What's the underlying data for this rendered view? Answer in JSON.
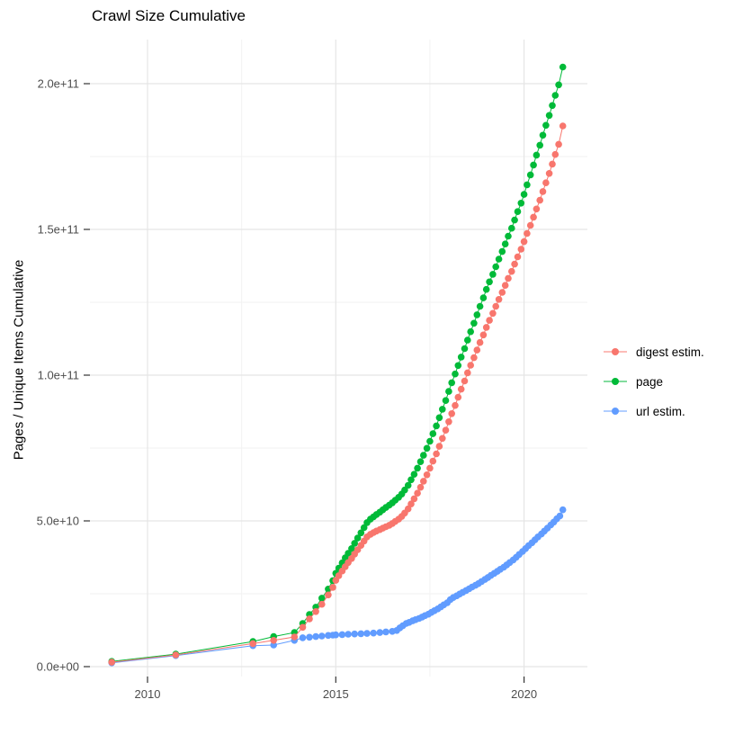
{
  "title": "Crawl Size Cumulative",
  "y_axis": {
    "label": "Pages / Unique Items Cumulative",
    "ticks": [
      "0.0e+00",
      "5.0e+10",
      "1.0e+11",
      "1.5e+11",
      "2.0e+11"
    ],
    "tick_values_billions": [
      0,
      50,
      100,
      150,
      200
    ],
    "minor_values_billions": [
      25,
      75,
      125,
      175
    ]
  },
  "x_axis": {
    "ticks": [
      "2010",
      "2015",
      "2020"
    ],
    "tick_values": [
      2010,
      2015,
      2020
    ],
    "minor_values": [
      2012.5,
      2017.5
    ]
  },
  "legend": {
    "items": [
      {
        "label": "digest estim.",
        "color": "#F8766D"
      },
      {
        "label": "page",
        "color": "#00BA38"
      },
      {
        "label": "url estim.",
        "color": "#619CFF"
      }
    ]
  },
  "colors": {
    "grid_major": "#E5E5E5",
    "grid_minor": "#F2F2F2",
    "tick_mark": "#333333",
    "tick_text": "#4D4D4D"
  },
  "chart_data": {
    "type": "line",
    "style": "points-and-line",
    "title": "Crawl Size Cumulative",
    "xlabel": "",
    "ylabel": "Pages / Unique Items Cumulative",
    "x_unit": "year",
    "y_unit": "pages (billions, 1e9)",
    "xlim": [
      2008.5,
      2021.7
    ],
    "ylim_billions": [
      0,
      218
    ],
    "grid": true,
    "legend_position": "right",
    "series": [
      {
        "name": "digest estim.",
        "color": "#F8766D",
        "points": [
          [
            2009.05,
            1.5
          ],
          [
            2010.75,
            4.0
          ],
          [
            2012.8,
            7.9
          ],
          [
            2013.35,
            9.0
          ],
          [
            2013.9,
            10.2
          ],
          [
            2014.12,
            13.5
          ],
          [
            2014.3,
            16.4
          ],
          [
            2014.47,
            18.9
          ],
          [
            2014.63,
            21.4
          ],
          [
            2014.8,
            24.6
          ],
          [
            2014.92,
            27.2
          ],
          [
            2015.0,
            29.6
          ],
          [
            2015.08,
            31.2
          ],
          [
            2015.17,
            32.8
          ],
          [
            2015.25,
            34.3
          ],
          [
            2015.33,
            35.7
          ],
          [
            2015.42,
            37.1
          ],
          [
            2015.5,
            38.6
          ],
          [
            2015.58,
            40.1
          ],
          [
            2015.67,
            41.6
          ],
          [
            2015.75,
            43.1
          ],
          [
            2015.83,
            44.5
          ],
          [
            2015.92,
            45.4
          ],
          [
            2016.0,
            46.0
          ],
          [
            2016.08,
            46.5
          ],
          [
            2016.17,
            47.0
          ],
          [
            2016.25,
            47.5
          ],
          [
            2016.33,
            48.0
          ],
          [
            2016.42,
            48.5
          ],
          [
            2016.5,
            49.1
          ],
          [
            2016.58,
            49.8
          ],
          [
            2016.67,
            50.6
          ],
          [
            2016.75,
            51.5
          ],
          [
            2016.83,
            52.7
          ],
          [
            2016.92,
            54.1
          ],
          [
            2017.0,
            55.8
          ],
          [
            2017.08,
            57.6
          ],
          [
            2017.17,
            59.5
          ],
          [
            2017.25,
            61.5
          ],
          [
            2017.33,
            63.6
          ],
          [
            2017.42,
            65.8
          ],
          [
            2017.5,
            68.1
          ],
          [
            2017.58,
            70.5
          ],
          [
            2017.67,
            73.0
          ],
          [
            2017.75,
            75.6
          ],
          [
            2017.83,
            78.3
          ],
          [
            2017.92,
            81.1
          ],
          [
            2018.0,
            84.0
          ],
          [
            2018.08,
            86.8
          ],
          [
            2018.17,
            89.6
          ],
          [
            2018.25,
            92.4
          ],
          [
            2018.33,
            95.2
          ],
          [
            2018.42,
            98.0
          ],
          [
            2018.5,
            100.8
          ],
          [
            2018.58,
            103.4
          ],
          [
            2018.67,
            106.0
          ],
          [
            2018.75,
            108.6
          ],
          [
            2018.83,
            111.2
          ],
          [
            2018.92,
            113.8
          ],
          [
            2019.0,
            116.4
          ],
          [
            2019.08,
            118.8
          ],
          [
            2019.17,
            121.2
          ],
          [
            2019.25,
            123.6
          ],
          [
            2019.33,
            126.0
          ],
          [
            2019.42,
            128.4
          ],
          [
            2019.5,
            130.8
          ],
          [
            2019.58,
            133.2
          ],
          [
            2019.67,
            135.6
          ],
          [
            2019.75,
            138.1
          ],
          [
            2019.83,
            140.6
          ],
          [
            2019.92,
            143.2
          ],
          [
            2020.0,
            145.8
          ],
          [
            2020.08,
            148.6
          ],
          [
            2020.17,
            151.4
          ],
          [
            2020.25,
            154.2
          ],
          [
            2020.33,
            157.0
          ],
          [
            2020.42,
            160.0
          ],
          [
            2020.5,
            163.0
          ],
          [
            2020.58,
            166.0
          ],
          [
            2020.67,
            169.2
          ],
          [
            2020.75,
            172.4
          ],
          [
            2020.83,
            175.7
          ],
          [
            2020.92,
            179.2
          ],
          [
            2021.03,
            185.5
          ]
        ]
      },
      {
        "name": "page",
        "color": "#00BA38",
        "points": [
          [
            2009.05,
            1.8
          ],
          [
            2010.75,
            4.3
          ],
          [
            2012.8,
            8.6
          ],
          [
            2013.35,
            10.3
          ],
          [
            2013.9,
            11.7
          ],
          [
            2014.12,
            14.8
          ],
          [
            2014.3,
            17.9
          ],
          [
            2014.47,
            20.4
          ],
          [
            2014.63,
            23.5
          ],
          [
            2014.8,
            26.6
          ],
          [
            2014.92,
            29.5
          ],
          [
            2015.0,
            32.0
          ],
          [
            2015.08,
            33.8
          ],
          [
            2015.17,
            35.6
          ],
          [
            2015.25,
            37.3
          ],
          [
            2015.33,
            38.9
          ],
          [
            2015.42,
            40.5
          ],
          [
            2015.5,
            42.3
          ],
          [
            2015.58,
            44.1
          ],
          [
            2015.67,
            45.9
          ],
          [
            2015.75,
            47.7
          ],
          [
            2015.83,
            49.4
          ],
          [
            2015.92,
            50.6
          ],
          [
            2016.0,
            51.4
          ],
          [
            2016.08,
            52.2
          ],
          [
            2016.17,
            53.0
          ],
          [
            2016.25,
            53.8
          ],
          [
            2016.33,
            54.6
          ],
          [
            2016.42,
            55.4
          ],
          [
            2016.5,
            56.2
          ],
          [
            2016.58,
            57.1
          ],
          [
            2016.67,
            58.1
          ],
          [
            2016.75,
            59.2
          ],
          [
            2016.83,
            60.6
          ],
          [
            2016.92,
            62.2
          ],
          [
            2017.0,
            64.1
          ],
          [
            2017.08,
            66.0
          ],
          [
            2017.17,
            68.1
          ],
          [
            2017.25,
            70.3
          ],
          [
            2017.33,
            72.5
          ],
          [
            2017.42,
            74.9
          ],
          [
            2017.5,
            77.3
          ],
          [
            2017.58,
            79.9
          ],
          [
            2017.67,
            82.6
          ],
          [
            2017.75,
            85.4
          ],
          [
            2017.83,
            88.3
          ],
          [
            2017.92,
            91.3
          ],
          [
            2018.0,
            94.4
          ],
          [
            2018.08,
            97.4
          ],
          [
            2018.17,
            100.4
          ],
          [
            2018.25,
            103.3
          ],
          [
            2018.33,
            106.2
          ],
          [
            2018.42,
            109.1
          ],
          [
            2018.5,
            112.0
          ],
          [
            2018.58,
            114.9
          ],
          [
            2018.67,
            117.8
          ],
          [
            2018.75,
            120.7
          ],
          [
            2018.83,
            123.6
          ],
          [
            2018.92,
            126.5
          ],
          [
            2019.0,
            129.4
          ],
          [
            2019.08,
            132.0
          ],
          [
            2019.17,
            134.6
          ],
          [
            2019.25,
            137.2
          ],
          [
            2019.33,
            139.8
          ],
          [
            2019.42,
            142.4
          ],
          [
            2019.5,
            145.0
          ],
          [
            2019.58,
            147.7
          ],
          [
            2019.67,
            150.4
          ],
          [
            2019.75,
            153.2
          ],
          [
            2019.83,
            156.1
          ],
          [
            2019.92,
            159.0
          ],
          [
            2020.0,
            162.0
          ],
          [
            2020.08,
            165.3
          ],
          [
            2020.17,
            168.7
          ],
          [
            2020.25,
            172.1
          ],
          [
            2020.33,
            175.5
          ],
          [
            2020.42,
            178.9
          ],
          [
            2020.5,
            182.3
          ],
          [
            2020.58,
            185.7
          ],
          [
            2020.67,
            189.1
          ],
          [
            2020.75,
            192.5
          ],
          [
            2020.83,
            196.0
          ],
          [
            2020.92,
            199.6
          ],
          [
            2021.03,
            205.7
          ]
        ]
      },
      {
        "name": "url estim.",
        "color": "#619CFF",
        "points": [
          [
            2009.05,
            1.3
          ],
          [
            2010.75,
            3.8
          ],
          [
            2012.8,
            7.2
          ],
          [
            2013.35,
            7.4
          ],
          [
            2013.9,
            9.0
          ],
          [
            2014.12,
            9.9
          ],
          [
            2014.3,
            10.1
          ],
          [
            2014.47,
            10.3
          ],
          [
            2014.63,
            10.5
          ],
          [
            2014.8,
            10.7
          ],
          [
            2014.92,
            10.8
          ],
          [
            2015.0,
            10.9
          ],
          [
            2015.17,
            11.0
          ],
          [
            2015.33,
            11.1
          ],
          [
            2015.5,
            11.2
          ],
          [
            2015.67,
            11.3
          ],
          [
            2015.83,
            11.4
          ],
          [
            2016.0,
            11.5
          ],
          [
            2016.17,
            11.7
          ],
          [
            2016.33,
            11.9
          ],
          [
            2016.5,
            12.1
          ],
          [
            2016.62,
            12.4
          ],
          [
            2016.7,
            13.3
          ],
          [
            2016.78,
            14.0
          ],
          [
            2016.87,
            14.8
          ],
          [
            2016.95,
            15.2
          ],
          [
            2017.04,
            15.7
          ],
          [
            2017.12,
            16.1
          ],
          [
            2017.21,
            16.5
          ],
          [
            2017.29,
            17.0
          ],
          [
            2017.37,
            17.5
          ],
          [
            2017.46,
            18.0
          ],
          [
            2017.54,
            18.6
          ],
          [
            2017.62,
            19.2
          ],
          [
            2017.71,
            19.8
          ],
          [
            2017.79,
            20.5
          ],
          [
            2017.87,
            21.2
          ],
          [
            2017.96,
            21.9
          ],
          [
            2018.04,
            23.0
          ],
          [
            2018.12,
            23.7
          ],
          [
            2018.21,
            24.3
          ],
          [
            2018.29,
            24.9
          ],
          [
            2018.37,
            25.5
          ],
          [
            2018.46,
            26.1
          ],
          [
            2018.54,
            26.7
          ],
          [
            2018.62,
            27.3
          ],
          [
            2018.71,
            27.9
          ],
          [
            2018.79,
            28.5
          ],
          [
            2018.87,
            29.2
          ],
          [
            2018.96,
            29.9
          ],
          [
            2019.04,
            30.6
          ],
          [
            2019.12,
            31.3
          ],
          [
            2019.21,
            32.0
          ],
          [
            2019.29,
            32.7
          ],
          [
            2019.37,
            33.4
          ],
          [
            2019.46,
            34.1
          ],
          [
            2019.54,
            34.9
          ],
          [
            2019.62,
            35.7
          ],
          [
            2019.71,
            36.6
          ],
          [
            2019.79,
            37.5
          ],
          [
            2019.87,
            38.5
          ],
          [
            2019.96,
            39.5
          ],
          [
            2020.04,
            40.5
          ],
          [
            2020.12,
            41.5
          ],
          [
            2020.21,
            42.5
          ],
          [
            2020.29,
            43.5
          ],
          [
            2020.37,
            44.5
          ],
          [
            2020.46,
            45.5
          ],
          [
            2020.54,
            46.5
          ],
          [
            2020.62,
            47.5
          ],
          [
            2020.71,
            48.6
          ],
          [
            2020.79,
            49.6
          ],
          [
            2020.87,
            50.7
          ],
          [
            2020.95,
            51.7
          ],
          [
            2021.03,
            53.8
          ]
        ]
      }
    ]
  }
}
